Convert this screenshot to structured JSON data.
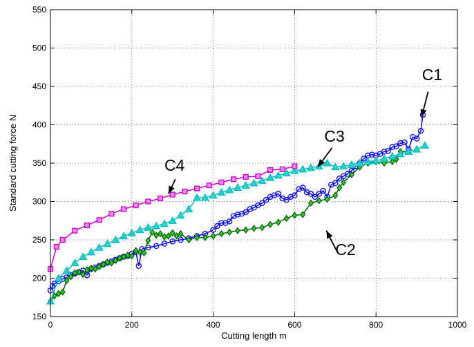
{
  "chart_data": {
    "type": "line",
    "title": "",
    "xlabel": "Cutting length m",
    "ylabel": "Standard cutting force N",
    "xlim": [
      0,
      1000
    ],
    "ylim": [
      150,
      550
    ],
    "xticks": [
      0,
      200,
      400,
      600,
      800,
      1000
    ],
    "yticks": [
      150,
      200,
      250,
      300,
      350,
      400,
      450,
      500,
      550
    ],
    "grid": true,
    "legend": "none",
    "series": [
      {
        "color": "#0000ff",
        "marker": "circle",
        "x": [
          0,
          5,
          10,
          20,
          30,
          40,
          50,
          60,
          70,
          80,
          90,
          100,
          110,
          120,
          130,
          140,
          150,
          160,
          170,
          180,
          190,
          200,
          210,
          217,
          225,
          240,
          260,
          280,
          300,
          320,
          340,
          360,
          380,
          400,
          410,
          420,
          430,
          440,
          450,
          460,
          470,
          480,
          490,
          500,
          510,
          520,
          530,
          540,
          550,
          560,
          570,
          580,
          590,
          600,
          610,
          620,
          630,
          640,
          650,
          660,
          670,
          680,
          690,
          700,
          710,
          720,
          730,
          740,
          750,
          760,
          770,
          780,
          790,
          800,
          810,
          820,
          830,
          840,
          850,
          860,
          870,
          880,
          890,
          900,
          910,
          915
        ],
        "y": [
          184,
          190,
          193,
          196,
          199,
          201,
          204,
          206,
          208,
          210,
          204,
          212,
          214,
          216,
          218,
          220,
          222,
          224,
          226,
          228,
          229,
          232,
          234,
          216,
          238,
          240,
          242,
          245,
          248,
          250,
          252,
          255,
          258,
          263,
          268,
          272,
          272,
          274,
          281,
          283,
          284,
          286,
          290,
          292,
          295,
          298,
          302,
          306,
          308,
          310,
          304,
          302,
          306,
          308,
          316,
          318,
          312,
          310,
          306,
          310,
          314,
          306,
          322,
          324,
          330,
          333,
          336,
          340,
          346,
          350,
          356,
          360,
          361,
          360,
          362,
          365,
          366,
          371,
          372,
          376,
          377,
          368,
          384,
          382,
          392,
          413
        ]
      },
      {
        "color": "#006400",
        "fill": "#33cc33",
        "marker": "diamond",
        "x": [
          0,
          10,
          20,
          30,
          40,
          50,
          60,
          70,
          80,
          90,
          100,
          110,
          120,
          130,
          140,
          150,
          160,
          170,
          180,
          190,
          200,
          210,
          220,
          230,
          240,
          250,
          260,
          270,
          280,
          290,
          300,
          310,
          320,
          340,
          360,
          380,
          400,
          420,
          440,
          460,
          480,
          500,
          520,
          540,
          560,
          580,
          600,
          620,
          640,
          660,
          680,
          700,
          710,
          720,
          740,
          760,
          780,
          800,
          820,
          840,
          850,
          860,
          880
        ],
        "y": [
          170,
          177,
          180,
          182,
          197,
          202,
          207,
          208,
          205,
          211,
          213,
          212,
          215,
          218,
          221,
          220,
          223,
          226,
          228,
          230,
          229,
          236,
          234,
          233,
          249,
          260,
          256,
          258,
          254,
          255,
          259,
          255,
          258,
          250,
          253,
          253,
          255,
          258,
          260,
          262,
          263,
          265,
          266,
          270,
          273,
          278,
          282,
          283,
          298,
          301,
          303,
          308,
          318,
          325,
          335,
          345,
          350,
          352,
          350,
          352,
          355,
          365,
          365
        ]
      },
      {
        "color": "#00bfbf",
        "fill": "#33cccc",
        "marker": "triangle",
        "x": [
          0,
          20,
          40,
          60,
          80,
          100,
          120,
          140,
          160,
          180,
          200,
          220,
          240,
          260,
          280,
          300,
          320,
          340,
          360,
          380,
          400,
          420,
          440,
          460,
          480,
          500,
          520,
          540,
          560,
          580,
          600,
          620,
          640,
          660,
          680,
          700,
          720,
          740,
          760,
          780,
          800,
          820,
          840,
          860,
          880,
          900,
          920
        ],
        "y": [
          170,
          200,
          210,
          220,
          228,
          234,
          240,
          245,
          250,
          255,
          259,
          263,
          266,
          268,
          271,
          275,
          282,
          290,
          305,
          305,
          308,
          312,
          315,
          318,
          321,
          324,
          327,
          331,
          334,
          337,
          340,
          342,
          344,
          346,
          350,
          345,
          346,
          348,
          350,
          352,
          353,
          356,
          359,
          362,
          365,
          368,
          373
        ]
      },
      {
        "color": "#cc00cc",
        "fill": "#ee88ee",
        "marker": "square",
        "x": [
          0,
          15,
          30,
          60,
          90,
          120,
          150,
          180,
          210,
          240,
          270,
          300,
          330,
          360,
          390,
          420,
          450,
          480,
          510,
          540,
          570,
          600
        ],
        "y": [
          212,
          241,
          250,
          262,
          269,
          276,
          284,
          290,
          295,
          300,
          304,
          309,
          313,
          317,
          321,
          325,
          329,
          332,
          333,
          341,
          342,
          346
        ]
      }
    ],
    "annotations": [
      {
        "text": "C1",
        "tx": 938,
        "ty": 458,
        "ax1": 928,
        "ay1": 443,
        "ax2": 912,
        "ay2": 410
      },
      {
        "text": "C2",
        "tx": 725,
        "ty": 230,
        "ax1": 703,
        "ay1": 236,
        "ax2": 678,
        "ay2": 262
      },
      {
        "text": "C3",
        "tx": 698,
        "ty": 378,
        "ax1": 692,
        "ay1": 370,
        "ax2": 657,
        "ay2": 345
      },
      {
        "text": "C4",
        "tx": 305,
        "ty": 340,
        "ax1": 307,
        "ay1": 329,
        "ax2": 290,
        "ay2": 310
      }
    ]
  }
}
